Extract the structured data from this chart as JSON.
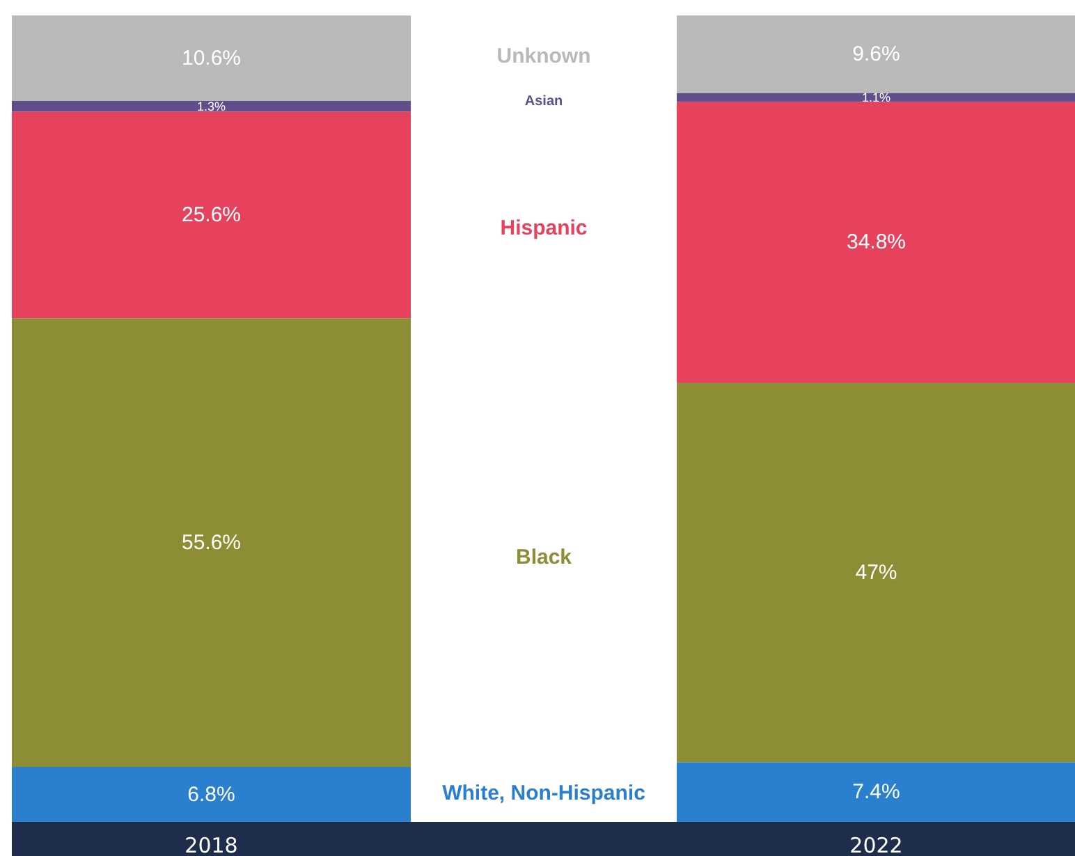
{
  "chart_data": {
    "type": "bar",
    "stacked": true,
    "categories": [
      "2018",
      "2022"
    ],
    "ylim": [
      0,
      100
    ],
    "series": [
      {
        "name": "White, Non-Hispanic",
        "color": "#2b7fcf",
        "values": [
          6.8,
          7.4
        ],
        "value_labels": [
          "6.8%",
          "7.4%"
        ]
      },
      {
        "name": "Black",
        "color": "#8c8d35",
        "values": [
          55.6,
          47
        ],
        "value_labels": [
          "55.6%",
          "47%"
        ]
      },
      {
        "name": "Hispanic",
        "color": "#e6425e",
        "values": [
          25.6,
          34.8
        ],
        "value_labels": [
          "25.6%",
          "34.8%"
        ]
      },
      {
        "name": "Asian",
        "color": "#5e4f8c",
        "values": [
          1.3,
          1.1
        ],
        "value_labels": [
          "1.3%",
          "1.1%"
        ]
      },
      {
        "name": "Unknown",
        "color": "#b9b9b9",
        "values": [
          10.6,
          9.6
        ],
        "value_labels": [
          "10.6%",
          "9.6%"
        ]
      }
    ]
  }
}
